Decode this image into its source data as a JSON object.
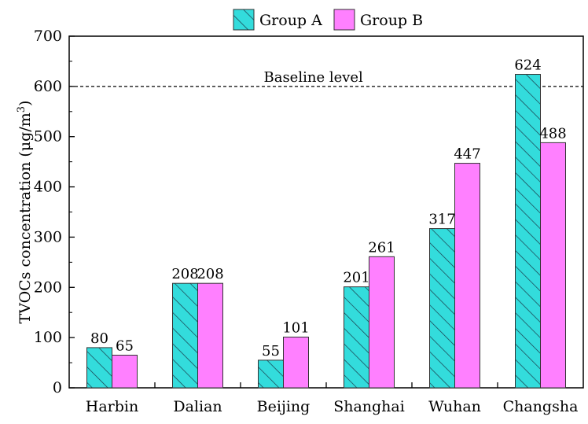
{
  "chart_data": {
    "type": "bar",
    "categories": [
      "Harbin",
      "Dalian",
      "Beijing",
      "Shanghai",
      "Wuhan",
      "Changsha"
    ],
    "series": [
      {
        "name": "Group A",
        "values": [
          80,
          208,
          55,
          201,
          317,
          624
        ],
        "color": "#33dcdc",
        "pattern": "diagonal-hatch"
      },
      {
        "name": "Group B",
        "values": [
          65,
          208,
          101,
          261,
          447,
          488
        ],
        "color": "#ff80ff",
        "pattern": "solid"
      }
    ],
    "ylabel": "TVOCs concentration (μg/m",
    "ylabel_superscript": "3",
    "ylabel_close": ")",
    "xlabel": "",
    "ylim": [
      0,
      700
    ],
    "yticks": [
      0,
      100,
      200,
      300,
      400,
      500,
      600,
      700
    ],
    "reference_line": {
      "value": 600,
      "label": "Baseline  level",
      "style": "dashed"
    },
    "legend_position": "top-center",
    "grid": false
  }
}
